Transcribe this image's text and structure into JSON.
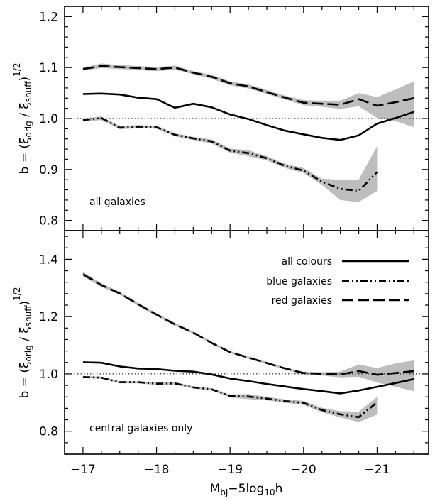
{
  "chart_data": [
    {
      "panel": "top",
      "type": "line",
      "annotation": "all galaxies",
      "ylabel": "b = (ξ_orig / ξ_shuff)^1/2",
      "ylim": [
        0.78,
        1.22
      ],
      "yticks": [
        "0.8",
        "0.9",
        "1.0",
        "1.1",
        "1.2"
      ],
      "yticks_values": [
        0.8,
        0.9,
        1.0,
        1.1,
        1.2
      ],
      "reference_line": 1.0,
      "x": [
        -17.0,
        -17.25,
        -17.5,
        -17.75,
        -18.0,
        -18.25,
        -18.5,
        -18.75,
        -19.0,
        -19.25,
        -19.5,
        -19.75,
        -20.0,
        -20.25,
        -20.5,
        -20.75,
        -21.0,
        -21.25,
        -21.5
      ],
      "series": [
        {
          "name": "all colours",
          "style": "solid",
          "values": [
            1.048,
            1.049,
            1.047,
            1.041,
            1.038,
            1.021,
            1.029,
            1.022,
            1.008,
            0.999,
            0.987,
            0.976,
            0.969,
            0.962,
            0.958,
            0.967,
            0.99,
            1.001,
            1.013
          ]
        },
        {
          "name": "blue galaxies",
          "style": "dash-dot-dot",
          "values": [
            0.997,
            1.001,
            0.982,
            0.984,
            0.983,
            0.968,
            0.961,
            0.955,
            0.937,
            0.932,
            0.922,
            0.907,
            0.898,
            0.876,
            0.862,
            0.858,
            0.895,
            null,
            null
          ],
          "band_low": [
            0.994,
            0.997,
            0.979,
            0.981,
            0.98,
            0.965,
            0.958,
            0.951,
            0.933,
            0.926,
            0.918,
            0.903,
            0.893,
            0.87,
            0.84,
            0.836,
            0.858,
            null,
            null
          ],
          "band_high": [
            1.0,
            1.004,
            0.985,
            0.987,
            0.986,
            0.971,
            0.964,
            0.959,
            0.941,
            0.938,
            0.926,
            0.911,
            0.903,
            0.882,
            0.88,
            0.88,
            0.946,
            null,
            null
          ]
        },
        {
          "name": "red galaxies",
          "style": "dashed",
          "values": [
            1.097,
            1.103,
            1.101,
            1.099,
            1.097,
            1.1,
            1.09,
            1.082,
            1.069,
            1.063,
            1.052,
            1.041,
            1.031,
            1.029,
            1.027,
            1.038,
            1.025,
            1.032,
            1.04
          ],
          "band_low": [
            1.094,
            1.099,
            1.097,
            1.095,
            1.093,
            1.096,
            1.087,
            1.078,
            1.065,
            1.059,
            1.048,
            1.037,
            1.026,
            1.023,
            1.019,
            1.024,
            1.001,
            0.995,
            0.983
          ],
          "band_high": [
            1.1,
            1.108,
            1.105,
            1.103,
            1.101,
            1.104,
            1.093,
            1.086,
            1.073,
            1.067,
            1.056,
            1.045,
            1.036,
            1.035,
            1.035,
            1.05,
            1.042,
            1.057,
            1.073
          ]
        }
      ]
    },
    {
      "panel": "bottom",
      "type": "line",
      "annotation": "central galaxies only",
      "ylabel": "b = (ξ_orig / ξ_shuff)^1/2",
      "xlabel": "M_bJ−5log10h",
      "ylim": [
        0.72,
        1.5
      ],
      "yticks": [
        "0.8",
        "1.0",
        "1.2",
        "1.4"
      ],
      "yticks_values": [
        0.8,
        1.0,
        1.2,
        1.4
      ],
      "reference_line": 1.0,
      "xlim": [
        -16.75,
        -21.7
      ],
      "xticks": [
        "−17",
        "−18",
        "−19",
        "−20",
        "−21"
      ],
      "xticks_values": [
        -17,
        -18,
        -19,
        -20,
        -21
      ],
      "x": [
        -17.0,
        -17.25,
        -17.5,
        -17.75,
        -18.0,
        -18.25,
        -18.5,
        -18.75,
        -19.0,
        -19.25,
        -19.5,
        -19.75,
        -20.0,
        -20.25,
        -20.5,
        -20.75,
        -21.0,
        -21.25,
        -21.5
      ],
      "legend": [
        {
          "label": "all colours",
          "style": "solid"
        },
        {
          "label": "blue galaxies",
          "style": "dash-dot-dot"
        },
        {
          "label": "red galaxies",
          "style": "dashed"
        }
      ],
      "series": [
        {
          "name": "all colours",
          "style": "solid",
          "values": [
            1.041,
            1.039,
            1.026,
            1.019,
            1.017,
            1.011,
            1.008,
            0.998,
            0.984,
            0.975,
            0.965,
            0.956,
            0.947,
            0.94,
            0.932,
            0.942,
            0.955,
            0.968,
            0.982
          ]
        },
        {
          "name": "blue galaxies",
          "style": "dash-dot-dot",
          "values": [
            0.989,
            0.987,
            0.971,
            0.971,
            0.966,
            0.967,
            0.953,
            0.946,
            0.923,
            0.921,
            0.914,
            0.905,
            0.899,
            0.874,
            0.859,
            0.849,
            0.901,
            null,
            null
          ],
          "band_low": [
            0.985,
            0.983,
            0.967,
            0.967,
            0.962,
            0.963,
            0.949,
            0.942,
            0.918,
            0.912,
            0.908,
            0.899,
            0.892,
            0.866,
            0.848,
            0.832,
            0.858,
            null,
            null
          ],
          "band_high": [
            0.993,
            0.991,
            0.975,
            0.975,
            0.97,
            0.971,
            0.957,
            0.95,
            0.928,
            0.93,
            0.92,
            0.911,
            0.906,
            0.882,
            0.87,
            0.868,
            0.92,
            null,
            null
          ]
        },
        {
          "name": "red galaxies",
          "style": "dashed",
          "values": [
            1.348,
            1.31,
            1.281,
            1.243,
            1.207,
            1.173,
            1.144,
            1.108,
            1.076,
            1.057,
            1.038,
            1.019,
            1.003,
            1.0,
            0.998,
            1.01,
            0.997,
            1.003,
            1.01
          ],
          "band_low": [
            1.34,
            1.304,
            1.276,
            1.238,
            1.202,
            1.168,
            1.14,
            1.104,
            1.072,
            1.053,
            1.034,
            1.015,
            0.998,
            0.994,
            0.988,
            0.99,
            0.97,
            0.955,
            0.94
          ],
          "band_high": [
            1.356,
            1.316,
            1.286,
            1.248,
            1.212,
            1.178,
            1.148,
            1.112,
            1.08,
            1.061,
            1.042,
            1.023,
            1.008,
            1.006,
            1.008,
            1.033,
            1.02,
            1.037,
            1.047
          ]
        }
      ]
    }
  ]
}
